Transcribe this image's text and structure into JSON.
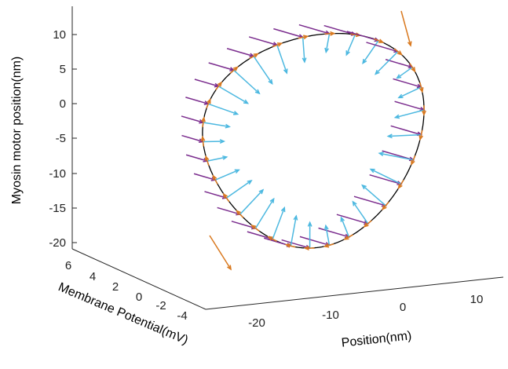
{
  "chart_data": {
    "type": "3d-line-with-quiver",
    "xlabel": "Position(nm)",
    "ylabel": "Membrane Potential(mV)",
    "zlabel": "Myosin motor position(nm)",
    "x_ticks": [
      "-20",
      "-10",
      "0",
      "10"
    ],
    "y_ticks": [
      "6",
      "4",
      "2",
      "0",
      "-2",
      "-4"
    ],
    "z_ticks": [
      "10",
      "5",
      "0",
      "-5",
      "-10",
      "-15",
      "-20"
    ],
    "xlim": [
      -27,
      17
    ],
    "ylim": [
      -5,
      7
    ],
    "zlim": [
      -21,
      14
    ],
    "grid": false,
    "colors": {
      "trajectory": "#000000",
      "tangent": "#d9791f",
      "purple": "#7b2d8e",
      "cyan": "#4cb8e0",
      "axis": "#262626"
    },
    "trajectory_points": 48
  }
}
